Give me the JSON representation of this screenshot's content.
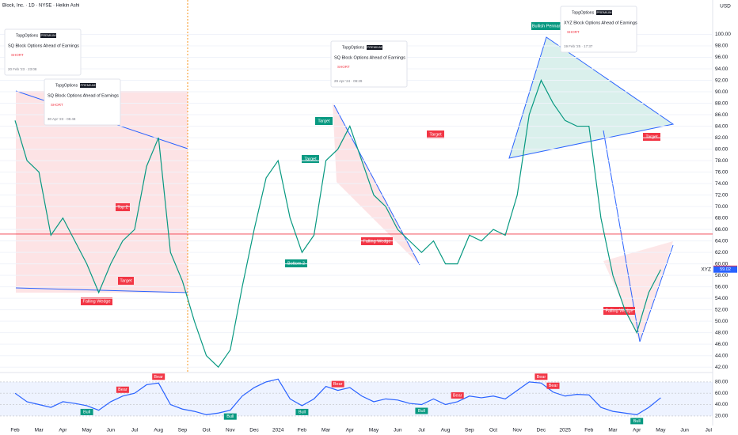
{
  "chart_data": {
    "type": "line",
    "title": "Block, Inc. · 1D · NYSE · Heikin Ashi",
    "currency": "USD",
    "categories": [
      "Feb",
      null,
      "Mar",
      null,
      "Apr",
      null,
      "May",
      null,
      "Jun",
      null,
      "Jul",
      null,
      "Aug",
      null,
      "Sep",
      null,
      "Oct",
      null,
      "Nov",
      null,
      "Dec",
      null,
      "2024",
      null,
      "Feb",
      null,
      "Mar",
      null,
      "Apr",
      null,
      "May",
      null,
      "Jun",
      null,
      "Jul",
      null,
      "Aug",
      null,
      "Sep",
      null,
      "Oct",
      null,
      "Nov",
      null,
      "Dec",
      null,
      "2025",
      null,
      "Feb",
      null,
      "Mar",
      null,
      "Apr",
      null,
      "May",
      null,
      "Jun",
      null,
      "Jul",
      null
    ],
    "series": [
      {
        "name": "XYZ",
        "color": "#089981",
        "values": [
          85,
          78,
          76,
          65,
          68,
          64,
          60,
          55,
          60,
          64,
          66,
          77,
          82,
          62,
          57,
          50,
          44,
          42,
          45,
          56,
          66,
          75,
          78,
          68,
          62,
          65,
          78,
          80,
          84,
          78,
          72,
          70,
          66,
          64,
          62,
          64,
          60,
          60,
          65,
          64,
          66,
          65,
          72,
          86,
          92,
          88,
          85,
          84,
          84,
          68,
          58,
          52,
          48,
          55,
          59,
          null,
          null,
          null,
          null,
          null
        ]
      }
    ],
    "ylim": [
      41.2,
      106
    ],
    "yticks": [
      {
        "value": 42,
        "label": "42.00"
      },
      {
        "value": 44,
        "label": "44.00"
      },
      {
        "value": 46,
        "label": "46.00"
      },
      {
        "value": 48,
        "label": "48.00"
      },
      {
        "value": 50,
        "label": "50.00"
      },
      {
        "value": 52,
        "label": "52.00"
      },
      {
        "value": 54,
        "label": "54.00"
      },
      {
        "value": 56,
        "label": "56.00"
      },
      {
        "value": 58,
        "label": "58.00"
      },
      {
        "value": 60,
        "label": "60.00"
      },
      {
        "value": 62,
        "label": "62.00"
      },
      {
        "value": 64,
        "label": "64.00"
      },
      {
        "value": 66,
        "label": "66.00"
      },
      {
        "value": 68,
        "label": "68.00"
      },
      {
        "value": 70,
        "label": "70.00"
      },
      {
        "value": 72,
        "label": "72.00"
      },
      {
        "value": 74,
        "label": "74.00"
      },
      {
        "value": 76,
        "label": "76.00"
      },
      {
        "value": 78,
        "label": "78.00"
      },
      {
        "value": 80,
        "label": "80.00"
      },
      {
        "value": 82,
        "label": "82.00"
      },
      {
        "value": 84,
        "label": "84.00"
      },
      {
        "value": 86,
        "label": "86.00"
      },
      {
        "value": 88,
        "label": "88.00"
      },
      {
        "value": 90,
        "label": "90.00"
      },
      {
        "value": 92,
        "label": "92.00"
      },
      {
        "value": 94,
        "label": "94.00"
      },
      {
        "value": 96,
        "label": "96.00"
      },
      {
        "value": 98,
        "label": "98.00"
      },
      {
        "value": 100,
        "label": "100.00"
      }
    ],
    "level": 65.2,
    "last_price": 59.15,
    "xyz_price": 59.02,
    "rsi": {
      "color": "#2962ff",
      "values": [
        60,
        45,
        40,
        35,
        45,
        42,
        38,
        30,
        45,
        55,
        60,
        75,
        78,
        40,
        32,
        28,
        22,
        25,
        30,
        55,
        70,
        80,
        85,
        50,
        38,
        50,
        72,
        65,
        70,
        55,
        45,
        50,
        48,
        42,
        40,
        50,
        40,
        45,
        55,
        52,
        55,
        50,
        65,
        80,
        78,
        62,
        55,
        58,
        57,
        35,
        28,
        25,
        22,
        35,
        52,
        null,
        null,
        null,
        null,
        null
      ],
      "ylim": [
        3,
        91
      ],
      "yticks": [
        {
          "value": 20,
          "label": "20.00"
        },
        {
          "value": 40,
          "label": "40.00"
        },
        {
          "value": 60,
          "label": "60.00"
        },
        {
          "value": 80,
          "label": "80.00"
        }
      ],
      "bull": "Bull",
      "bear": "Bear"
    },
    "patterns": [
      "Falling Wedge",
      "Top 2",
      "Target",
      "Bottom 2",
      "Target",
      "Target",
      "Falling Wedge",
      "Target",
      "Bullish Pennant",
      "Target",
      "Falling Wedge"
    ],
    "ideas": [
      {
        "author": "TopgOptions",
        "badge": "PREMIUM",
        "title": "SQ Block Options Ahead of Earnings",
        "side": "SHORT",
        "date": "20 Feb '23 · 23:08"
      },
      {
        "author": "TopgOptions",
        "badge": "PREMIUM",
        "title": "SQ Block Options Ahead of Earnings",
        "side": "SHORT",
        "date": "30 Apr '23 · 05:48"
      },
      {
        "author": "TopgOptions",
        "badge": "PREMIUM",
        "title": "SQ Block Options Ahead of Earnings",
        "side": "SHORT",
        "date": "29 Apr '24 · 09:29"
      },
      {
        "author": "TopgOptions",
        "badge": "PREMIUM",
        "title": "XYZ Block Options Ahead of Earnings",
        "side": "SHORT",
        "date": "19 Feb '25 · 17:37"
      }
    ]
  }
}
